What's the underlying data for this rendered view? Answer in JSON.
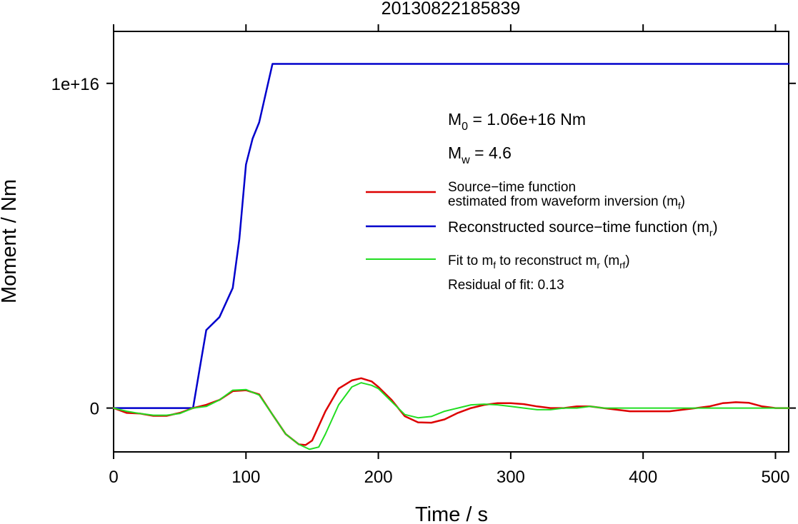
{
  "chart_data": {
    "type": "line",
    "title": "20130822185839",
    "xlabel": "Time / s",
    "ylabel": "Moment / Nm",
    "xlim": [
      0,
      510
    ],
    "ylim": [
      -1350000000000000.0,
      1.16e+16
    ],
    "x_ticks": [
      0,
      100,
      200,
      300,
      400,
      500
    ],
    "x_tick_labels": [
      "0",
      "100",
      "200",
      "300",
      "400",
      "500"
    ],
    "y_ticks": [
      0,
      1e+16
    ],
    "y_tick_labels": [
      "0",
      "1e+16"
    ],
    "grid": false,
    "legend_position": "right",
    "annotations": {
      "m0": {
        "symbol": "M",
        "sub": "0",
        "text": " = 1.06e+16 Nm"
      },
      "mw": {
        "symbol": "M",
        "sub": "w",
        "text": " = 4.6"
      },
      "residual": "Residual of fit: 0.13"
    },
    "legend": [
      {
        "color": "#dd0000",
        "lines": [
          {
            "text": "Source−time function"
          },
          {
            "text": "estimated from waveform inversion (m",
            "sub": "f",
            "tail": ")"
          }
        ]
      },
      {
        "color": "#0000cc",
        "lines": [
          {
            "text": "Reconstructed source−time function (m",
            "sub": "r",
            "tail": ")"
          }
        ]
      },
      {
        "color": "#22dd22",
        "lines": [
          {
            "text": "Fit to m",
            "sub": "f",
            "mid": " to reconstruct m",
            "sub2": "r",
            "mid2": " (m",
            "sub3": "rf",
            "tail": ")"
          }
        ]
      }
    ],
    "series": [
      {
        "color": "#0000cc",
        "x": [
          0,
          60,
          65,
          70,
          80,
          90,
          95,
          100,
          105,
          110,
          115,
          120,
          510
        ],
        "y": [
          0,
          0,
          1200000000000000.0,
          2400000000000000.0,
          2800000000000000.0,
          3700000000000000.0,
          5200000000000000.0,
          7500000000000000.0,
          8300000000000000.0,
          8800000000000000.0,
          9700000000000000.0,
          1.06e+16,
          1.06e+16
        ]
      },
      {
        "color": "#dd0000",
        "x": [
          0,
          10,
          20,
          30,
          40,
          50,
          60,
          70,
          80,
          90,
          100,
          110,
          120,
          130,
          140,
          145,
          150,
          160,
          170,
          180,
          187,
          195,
          200,
          210,
          220,
          230,
          240,
          250,
          260,
          270,
          280,
          290,
          300,
          310,
          320,
          330,
          340,
          350,
          360,
          370,
          380,
          390,
          400,
          420,
          440,
          450,
          460,
          470,
          480,
          490,
          500,
          510
        ],
        "y": [
          0,
          -150000000000000.0,
          -170000000000000.0,
          -240000000000000.0,
          -240000000000000.0,
          -150000000000000.0,
          0,
          100000000000000.0,
          250000000000000.0,
          520000000000000.0,
          550000000000000.0,
          420000000000000.0,
          -200000000000000.0,
          -800000000000000.0,
          -1120000000000000.0,
          -1140000000000000.0,
          -1000000000000000.0,
          -100000000000000.0,
          600000000000000.0,
          850000000000000.0,
          920000000000000.0,
          820000000000000.0,
          650000000000000.0,
          250000000000000.0,
          -250000000000000.0,
          -440000000000000.0,
          -450000000000000.0,
          -350000000000000.0,
          -150000000000000.0,
          0,
          100000000000000.0,
          150000000000000.0,
          150000000000000.0,
          120000000000000.0,
          50000000000000.0,
          0,
          0,
          50000000000000.0,
          50000000000000.0,
          0,
          -50000000000000.0,
          -100000000000000.0,
          -100000000000000.0,
          -100000000000000.0,
          0,
          50000000000000.0,
          150000000000000.0,
          180000000000000.0,
          160000000000000.0,
          50000000000000.0,
          0,
          0
        ]
      },
      {
        "color": "#22dd22",
        "x": [
          0,
          10,
          20,
          30,
          40,
          50,
          60,
          70,
          80,
          90,
          100,
          110,
          120,
          130,
          140,
          148,
          155,
          160,
          170,
          180,
          187,
          195,
          200,
          210,
          220,
          230,
          240,
          250,
          260,
          270,
          280,
          290,
          300,
          310,
          320,
          330,
          340,
          350,
          360,
          370,
          400,
          450,
          510
        ],
        "y": [
          0,
          -100000000000000.0,
          -170000000000000.0,
          -220000000000000.0,
          -220000000000000.0,
          -170000000000000.0,
          0,
          50000000000000.0,
          250000000000000.0,
          550000000000000.0,
          570000000000000.0,
          400000000000000.0,
          -200000000000000.0,
          -800000000000000.0,
          -1120000000000000.0,
          -1270000000000000.0,
          -1200000000000000.0,
          -800000000000000.0,
          100000000000000.0,
          650000000000000.0,
          780000000000000.0,
          700000000000000.0,
          600000000000000.0,
          200000000000000.0,
          -200000000000000.0,
          -300000000000000.0,
          -260000000000000.0,
          -100000000000000.0,
          0,
          100000000000000.0,
          120000000000000.0,
          100000000000000.0,
          50000000000000.0,
          0,
          -50000000000000.0,
          -50000000000000.0,
          0,
          0,
          50000000000000.0,
          0,
          0,
          0,
          0
        ]
      }
    ]
  }
}
